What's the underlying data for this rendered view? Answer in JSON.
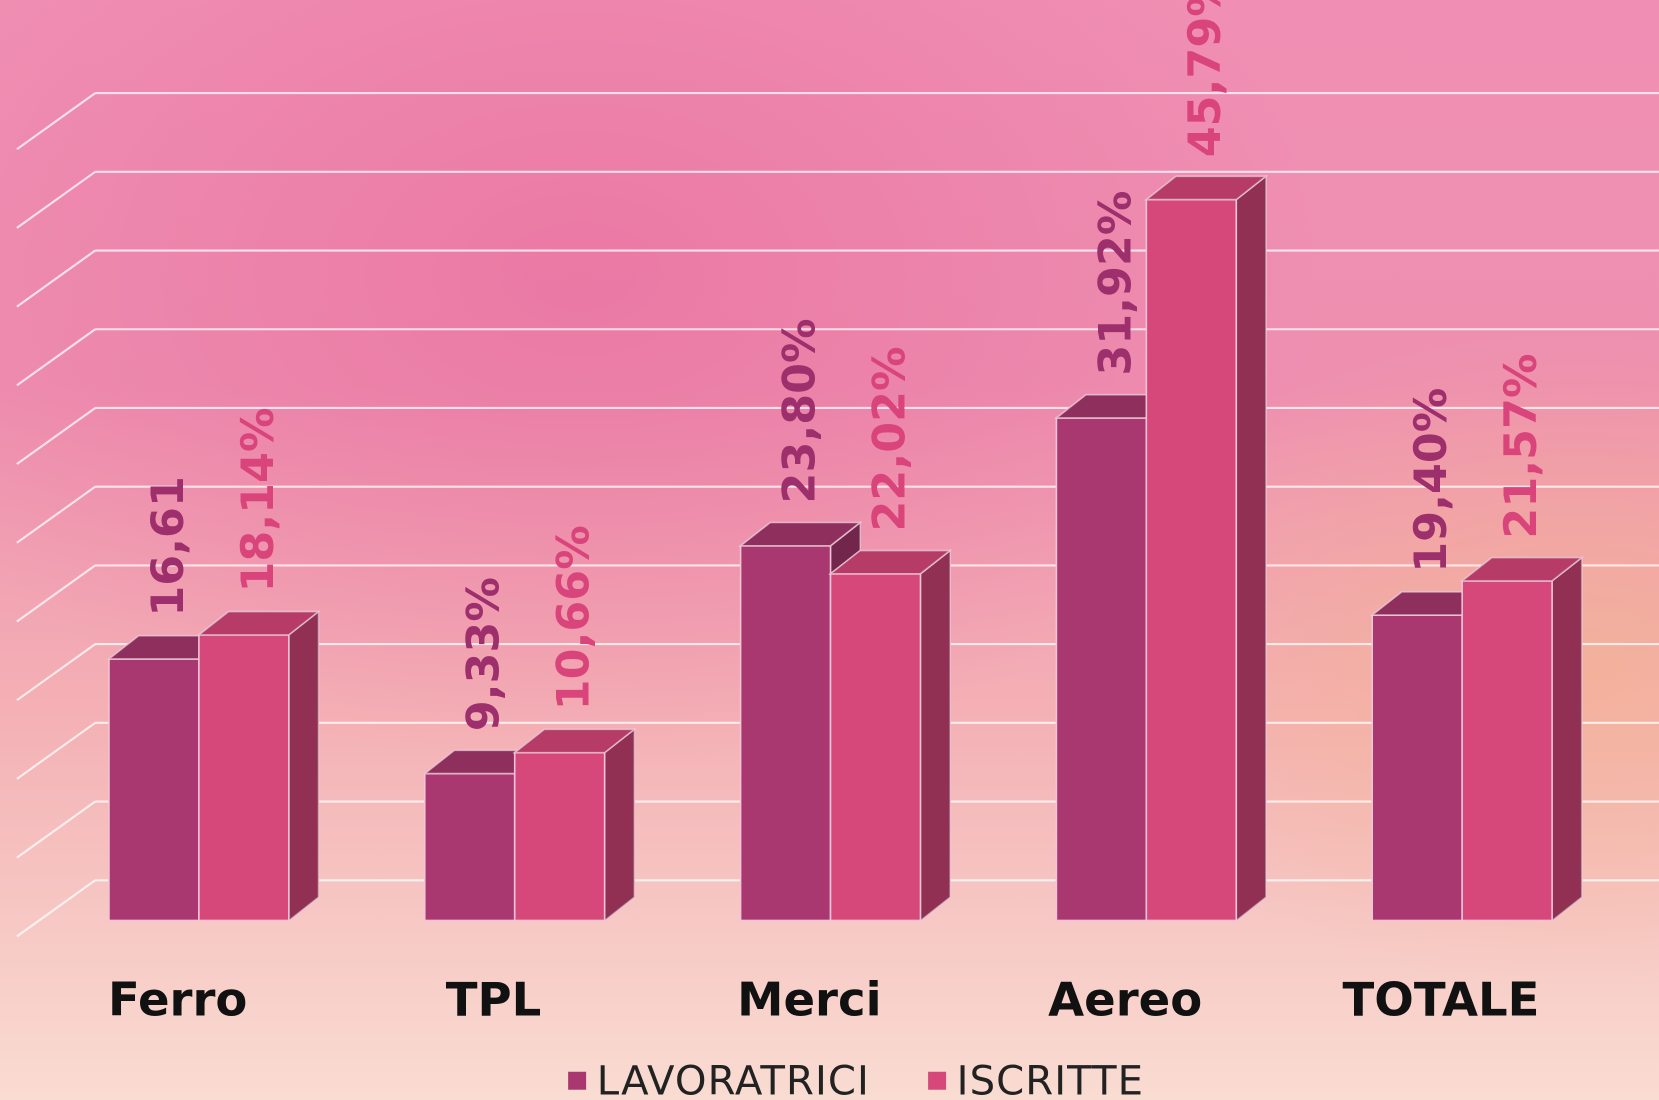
{
  "chart_data": {
    "type": "bar3d",
    "categories": [
      "Ferro",
      "TPL",
      "Merci",
      "Aereo",
      "TOTALE"
    ],
    "series": [
      {
        "name": "LAVORATRICI",
        "color": "#a8386f",
        "values": [
          16.61,
          9.33,
          23.8,
          31.92,
          19.4
        ],
        "value_labels": [
          "16,61",
          "9,33%",
          "23,80%",
          "31,92%",
          "19,40%"
        ],
        "label_color": "#9c2f6c"
      },
      {
        "name": "ISCRITTE",
        "color": "#d6477a",
        "values": [
          18.14,
          10.66,
          22.02,
          45.79,
          21.57
        ],
        "value_labels": [
          "18,14%",
          "10,66%",
          "22,02%",
          "45,79%",
          "21,57%"
        ],
        "label_color": "#d9457b"
      }
    ],
    "ylim": [
      0,
      50
    ],
    "yticks": [
      0,
      5,
      10,
      15,
      20,
      25,
      30,
      35,
      40,
      45,
      50
    ],
    "grid": true,
    "legend": "bottom"
  }
}
